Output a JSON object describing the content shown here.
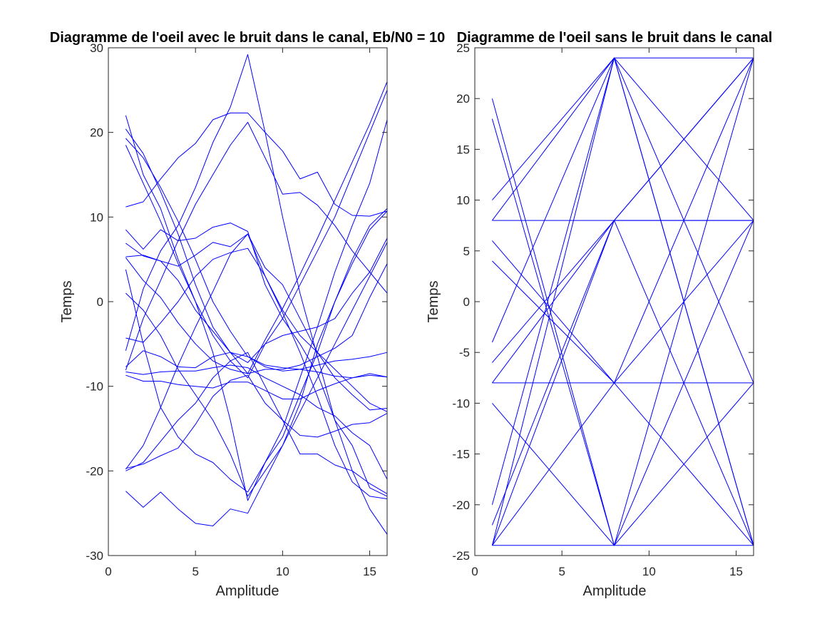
{
  "chart_data": [
    {
      "type": "line",
      "title": "Diagramme de l'oeil avec le bruit dans le canal, Eb/N0 = 10",
      "xlabel": "Amplitude",
      "ylabel": "Temps",
      "xlim": [
        0,
        16
      ],
      "ylim": [
        -30,
        30
      ],
      "xticks": [
        0,
        5,
        10,
        15
      ],
      "yticks": [
        -30,
        -20,
        -10,
        0,
        10,
        20,
        30
      ],
      "grid": false,
      "color": "#0000ff",
      "x": [
        1,
        2,
        3,
        4,
        5,
        6,
        7,
        8,
        9,
        10,
        11,
        12,
        13,
        14,
        15,
        16
      ],
      "series": [
        {
          "values": [
            22,
            15,
            11,
            5,
            0,
            -4,
            -7,
            -9,
            -5,
            -2,
            2,
            6,
            10,
            15,
            20,
            25
          ]
        },
        {
          "values": [
            20.4,
            17.5,
            13,
            8,
            2,
            -3,
            -6,
            -8.5,
            -4.5,
            -0.8,
            3.2,
            7.5,
            12,
            16.5,
            21,
            26
          ]
        },
        {
          "values": [
            19.3,
            17,
            13.5,
            9.5,
            5,
            0,
            -3.5,
            -6.5,
            -7.7,
            -8.2,
            -8,
            -7.5,
            -7,
            -6.8,
            -6.5,
            -6
          ]
        },
        {
          "values": [
            18.5,
            14,
            9.5,
            4.5,
            0,
            -6,
            -14,
            -23.5,
            -19,
            -15,
            -9,
            -3,
            3.5,
            9,
            14,
            21.5
          ]
        },
        {
          "values": [
            11.2,
            11.8,
            14.5,
            17,
            18.7,
            21.5,
            22.3,
            22.3,
            20,
            17.8,
            14.5,
            15.3,
            11.5,
            10.2,
            10.1,
            10.7
          ]
        },
        {
          "values": [
            8.5,
            6.2,
            8.5,
            7.2,
            7.5,
            8.8,
            9.3,
            8.3,
            2,
            -2,
            -5,
            -8.5,
            -14,
            -17,
            -22,
            -23
          ]
        },
        {
          "values": [
            6.9,
            5.4,
            4.8,
            4.2,
            5.5,
            7,
            6.5,
            8,
            4,
            2,
            -2,
            -6,
            -9,
            -11,
            -12.8,
            -12.6
          ]
        },
        {
          "values": [
            5.3,
            5.5,
            4.8,
            2.5,
            -1,
            -3.5,
            -6,
            -7.2,
            -5,
            -4,
            -3.5,
            -3,
            -2,
            1,
            3.5,
            7.5
          ]
        },
        {
          "values": [
            5.2,
            2.5,
            0.5,
            -2.5,
            -5,
            -7,
            -8,
            -8.5,
            -8,
            -8,
            -7.5,
            -6.5,
            -5.5,
            -4,
            0.5,
            4.5
          ]
        },
        {
          "values": [
            3.8,
            -5,
            -12.5,
            -16,
            -18,
            -19,
            -21,
            -22.5,
            -19,
            -16,
            -11,
            -6,
            0,
            4.5,
            8.5,
            10.7
          ]
        },
        {
          "values": [
            1,
            -1,
            -4,
            -8,
            -11,
            -14,
            -18,
            -23,
            -20,
            -17,
            -13,
            -9,
            -5,
            -1,
            3,
            7
          ]
        },
        {
          "values": [
            -4.3,
            -4.8,
            -2.5,
            0,
            3,
            5,
            5.8,
            6.3,
            3,
            -1,
            -4,
            -6,
            -8,
            -10,
            -12,
            -13
          ]
        },
        {
          "values": [
            -5.8,
            1.5,
            6,
            9,
            13.5,
            18.8,
            23,
            29.2,
            20,
            10,
            1,
            -6.5,
            -14,
            -20,
            -24.5,
            -27.5
          ]
        },
        {
          "values": [
            -7.7,
            -5.8,
            -6.5,
            -7.7,
            -7.8,
            -6.5,
            -6,
            -6.5,
            -7.5,
            -7.8,
            -8,
            -8.3,
            -8.8,
            -9,
            -8.7,
            -8.9
          ]
        },
        {
          "values": [
            -8.3,
            -8.6,
            -8.3,
            -8.2,
            -8.2,
            -7.8,
            -7.5,
            -7.8,
            -9,
            -10,
            -11,
            -12.5,
            -13.5,
            -15.5,
            -17,
            -21
          ]
        },
        {
          "values": [
            -8.7,
            -9.4,
            -9.4,
            -9.8,
            -10,
            -10.2,
            -9.5,
            -9.5,
            -10.5,
            -11.5,
            -11.5,
            -10.5,
            -9.7,
            -9,
            -8.5,
            -8.9
          ]
        },
        {
          "values": [
            -8.1,
            -2,
            2.5,
            7.2,
            11.5,
            15,
            18.5,
            21.2,
            17,
            12.7,
            12.9,
            11.4,
            9,
            6,
            3.5,
            1
          ]
        },
        {
          "values": [
            -19.7,
            -19.2,
            -18.2,
            -17.3,
            -14.5,
            -11.2,
            -9.3,
            -8.7,
            -12,
            -14,
            -15.8,
            -16,
            -15.3,
            -14.5,
            -14.3,
            -13.2
          ]
        },
        {
          "values": [
            -19.8,
            -17,
            -12.5,
            -7.5,
            -3,
            1.2,
            5.6,
            8,
            3,
            -1.3,
            -6,
            -11.2,
            -17,
            -21.3,
            -23,
            -23.3
          ]
        },
        {
          "values": [
            -20,
            -19,
            -16.5,
            -14,
            -12,
            -9,
            -7,
            -6,
            -10,
            -14,
            -18,
            -18,
            -19.3,
            -20,
            -21.5,
            -22.7
          ]
        },
        {
          "values": [
            -22.4,
            -24.3,
            -22.5,
            -24.5,
            -26.2,
            -26.5,
            -24.5,
            -25,
            -21,
            -17,
            -12,
            -5,
            0,
            5,
            9,
            11
          ]
        }
      ]
    },
    {
      "type": "line",
      "title": "Diagramme de l'oeil sans le bruit dans le canal",
      "xlabel": "Amplitude",
      "ylabel": "Temps",
      "xlim": [
        0,
        16
      ],
      "ylim": [
        -25,
        25
      ],
      "xticks": [
        0,
        5,
        10,
        15
      ],
      "yticks": [
        -25,
        -20,
        -15,
        -10,
        -5,
        0,
        5,
        10,
        15,
        20,
        25
      ],
      "grid": false,
      "color": "#0000ff",
      "x": [
        1,
        2,
        3,
        4,
        5,
        6,
        7,
        8,
        9,
        10,
        11,
        12,
        13,
        14,
        15,
        16
      ],
      "series": [
        {
          "values": [
            20,
            14,
            8,
            2,
            -4,
            -10,
            -16,
            -24,
            -16,
            -8,
            0,
            8,
            16,
            24,
            24,
            24
          ],
          "display_x": [
            1,
            8,
            16
          ],
          "display_values": [
            20,
            -24,
            24
          ]
        },
        {
          "x": [
            1,
            8,
            16
          ],
          "values": [
            18,
            -24,
            8
          ]
        },
        {
          "x": [
            1,
            8,
            16
          ],
          "values": [
            10,
            24,
            8
          ]
        },
        {
          "x": [
            1,
            8,
            16
          ],
          "values": [
            8,
            8,
            8
          ]
        },
        {
          "x": [
            1,
            8,
            16
          ],
          "values": [
            6,
            -8,
            -24
          ]
        },
        {
          "x": [
            1,
            8,
            16
          ],
          "values": [
            4,
            -8,
            24
          ]
        },
        {
          "x": [
            1,
            8,
            16
          ],
          "values": [
            -4,
            24,
            -8
          ]
        },
        {
          "x": [
            1,
            8,
            16
          ],
          "values": [
            -6,
            8,
            -24
          ]
        },
        {
          "x": [
            1,
            8,
            16
          ],
          "values": [
            -8,
            -8,
            -8
          ]
        },
        {
          "x": [
            1,
            8,
            16
          ],
          "values": [
            -10,
            -24,
            -8
          ]
        },
        {
          "x": [
            1,
            8,
            16
          ],
          "values": [
            -20,
            24,
            -24
          ]
        },
        {
          "x": [
            1,
            8,
            16
          ],
          "values": [
            -22,
            8,
            8
          ]
        },
        {
          "x": [
            1,
            8,
            16
          ],
          "values": [
            -24,
            -24,
            -24
          ]
        },
        {
          "x": [
            1,
            8,
            16
          ],
          "values": [
            -24,
            24,
            24
          ]
        },
        {
          "x": [
            1,
            8,
            16
          ],
          "values": [
            -24,
            8,
            24
          ]
        },
        {
          "x": [
            1,
            8,
            16
          ],
          "values": [
            -24,
            -8,
            8
          ]
        },
        {
          "x": [
            1,
            8,
            16
          ],
          "values": [
            8,
            24,
            -24
          ]
        },
        {
          "x": [
            1,
            8,
            16
          ],
          "values": [
            -8,
            8,
            24
          ]
        }
      ]
    }
  ]
}
